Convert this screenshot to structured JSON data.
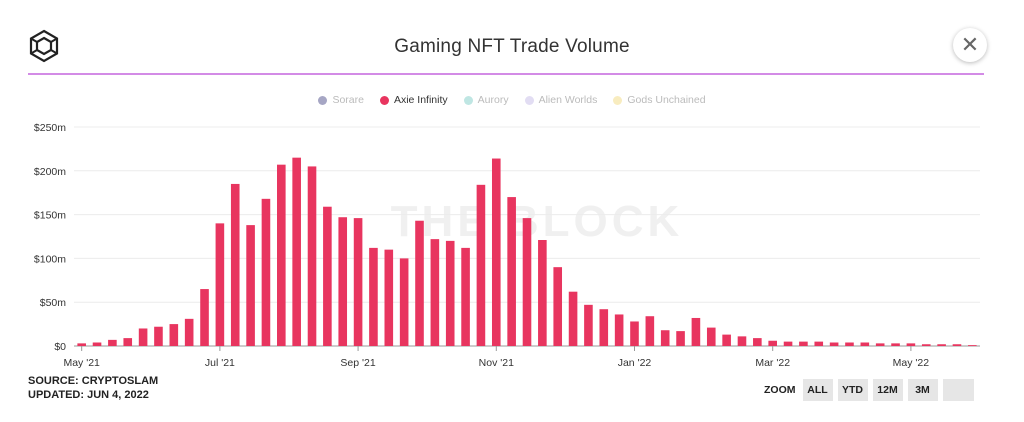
{
  "header": {
    "title": "Gaming NFT Trade Volume",
    "close_label": "✕"
  },
  "legend": [
    {
      "label": "Sorare",
      "color": "#a6a6c4",
      "active": false
    },
    {
      "label": "Axie Infinity",
      "color": "#e8355f",
      "active": true
    },
    {
      "label": "Aurory",
      "color": "#bfe6e3",
      "active": false
    },
    {
      "label": "Alien Worlds",
      "color": "#e2ddf3",
      "active": false
    },
    {
      "label": "Gods Unchained",
      "color": "#f8ecbf",
      "active": false
    }
  ],
  "watermark": "THE BLOCK",
  "source": {
    "line1": "SOURCE: CRYPTOSLAM",
    "line2": "UPDATED: JUN 4, 2022"
  },
  "zoom": {
    "label": "ZOOM",
    "buttons": [
      "ALL",
      "YTD",
      "12M",
      "3M",
      ""
    ]
  },
  "colors": {
    "bar": "#e8355f",
    "grid": "#ececec",
    "axis": "#999999",
    "accent_rule": "#d38be6"
  },
  "chart_data": {
    "type": "bar",
    "title": "Gaming NFT Trade Volume",
    "xlabel": "",
    "ylabel": "",
    "ylim": [
      0,
      250
    ],
    "y_unit": "USD millions",
    "yticks": [
      {
        "value": 0,
        "label": "$0"
      },
      {
        "value": 50,
        "label": "$50m"
      },
      {
        "value": 100,
        "label": "$100m"
      },
      {
        "value": 150,
        "label": "$150m"
      },
      {
        "value": 200,
        "label": "$200m"
      },
      {
        "value": 250,
        "label": "$250m"
      }
    ],
    "xticks": [
      {
        "index": 0,
        "label": "May '21"
      },
      {
        "index": 9,
        "label": "Jul '21"
      },
      {
        "index": 18,
        "label": "Sep '21"
      },
      {
        "index": 27,
        "label": "Nov '21"
      },
      {
        "index": 36,
        "label": "Jan '22"
      },
      {
        "index": 45,
        "label": "Mar '22"
      },
      {
        "index": 54,
        "label": "May '22"
      }
    ],
    "grid": true,
    "legend_position": "top-center",
    "series": [
      {
        "name": "Axie Infinity",
        "values": [
          3,
          4,
          7,
          9,
          20,
          22,
          25,
          31,
          65,
          140,
          185,
          138,
          168,
          207,
          215,
          205,
          159,
          147,
          146,
          112,
          110,
          100,
          143,
          122,
          120,
          112,
          184,
          214,
          170,
          146,
          121,
          90,
          62,
          47,
          42,
          36,
          28,
          34,
          18,
          17,
          32,
          21,
          13,
          11,
          9,
          6,
          5,
          5,
          5,
          4,
          4,
          4,
          3,
          3,
          3,
          2,
          2,
          2,
          1
        ]
      }
    ]
  }
}
